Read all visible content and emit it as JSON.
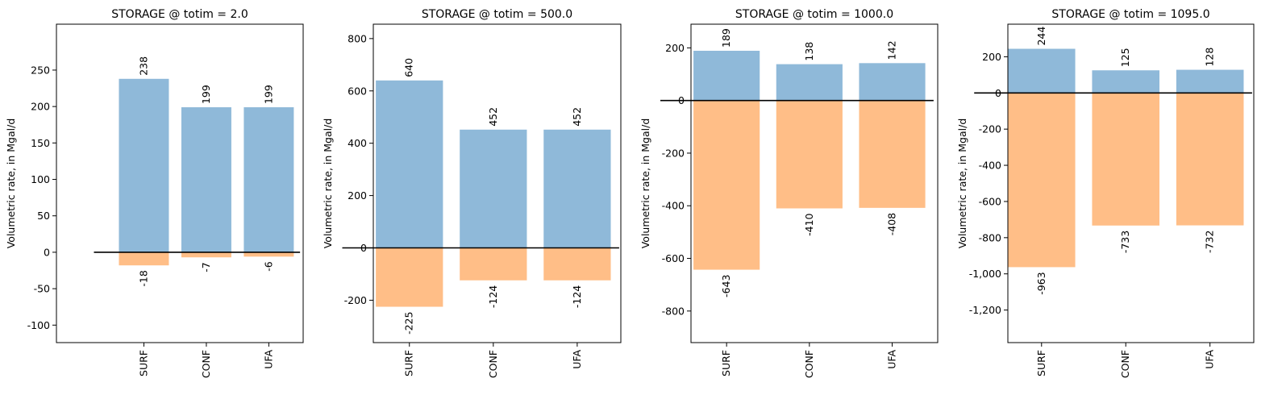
{
  "colors": {
    "inflow": "#8fb9d9",
    "outflow": "#ffbe87",
    "zero_line": "#000000"
  },
  "chart_data": [
    {
      "type": "bar",
      "title": "STORAGE @ totim = 2.0",
      "ylabel": "Volumetric rate, in Mgal/d",
      "categories": [
        "SURF",
        "CONF",
        "UFA"
      ],
      "series": [
        {
          "values": [
            238,
            199,
            199
          ]
        },
        {
          "values": [
            -18,
            -7,
            -6
          ]
        }
      ],
      "value_labels": {
        "in": [
          "238",
          "199",
          "199"
        ],
        "out": [
          "-18",
          "-7",
          "-6"
        ]
      },
      "ylim": [
        -124,
        313
      ],
      "yticks": [
        -100,
        -50,
        0,
        50,
        100,
        150,
        200,
        250
      ],
      "ytick_labels": [
        "-100",
        "-50",
        "0",
        "50",
        "100",
        "150",
        "200",
        "250"
      ],
      "grid": false
    },
    {
      "type": "bar",
      "title": "STORAGE @ totim = 500.0",
      "ylabel": "Volumetric rate, in Mgal/d",
      "categories": [
        "SURF",
        "CONF",
        "UFA"
      ],
      "series": [
        {
          "values": [
            640,
            452,
            452
          ]
        },
        {
          "values": [
            -225,
            -124,
            -124
          ]
        }
      ],
      "value_labels": {
        "in": [
          "640",
          "452",
          "452"
        ],
        "out": [
          "-225",
          "-124",
          "-124"
        ]
      },
      "ylim": [
        -362,
        855
      ],
      "yticks": [
        -200,
        0,
        200,
        400,
        600,
        800
      ],
      "ytick_labels": [
        "-200",
        "0",
        "200",
        "400",
        "600",
        "800"
      ],
      "grid": false
    },
    {
      "type": "bar",
      "title": "STORAGE @ totim = 1000.0",
      "ylabel": "Volumetric rate, in Mgal/d",
      "categories": [
        "SURF",
        "CONF",
        "UFA"
      ],
      "series": [
        {
          "values": [
            189,
            138,
            142
          ]
        },
        {
          "values": [
            -643,
            -410,
            -408
          ]
        }
      ],
      "value_labels": {
        "in": [
          "189",
          "138",
          "142"
        ],
        "out": [
          "-643",
          "-410",
          "-408"
        ]
      },
      "ylim": [
        -920,
        290
      ],
      "yticks": [
        -800,
        -600,
        -400,
        -200,
        0,
        200
      ],
      "ytick_labels": [
        "-800",
        "-600",
        "-400",
        "-200",
        "0",
        "200"
      ],
      "grid": false
    },
    {
      "type": "bar",
      "title": "STORAGE @ totim = 1095.0",
      "ylabel": "Volumetric rate, in Mgal/d",
      "categories": [
        "SURF",
        "CONF",
        "UFA"
      ],
      "series": [
        {
          "values": [
            244,
            125,
            128
          ]
        },
        {
          "values": [
            -963,
            -733,
            -732
          ]
        }
      ],
      "value_labels": {
        "in": [
          "244",
          "125",
          "128"
        ],
        "out": [
          "-963",
          "-733",
          "-732"
        ]
      },
      "ylim": [
        -1380,
        380
      ],
      "yticks": [
        -1200,
        -1000,
        -800,
        -600,
        -400,
        -200,
        0,
        200
      ],
      "ytick_labels": [
        "-1,200",
        "-1,000",
        "-800",
        "-600",
        "-400",
        "-200",
        "0",
        "200"
      ],
      "grid": false
    }
  ]
}
